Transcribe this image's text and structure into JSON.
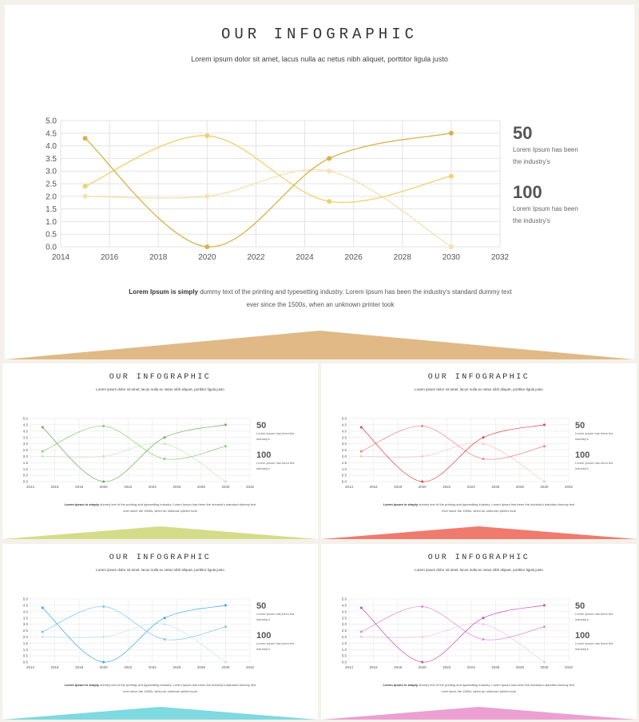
{
  "slide": {
    "title": "OUR INFOGRAPHIC",
    "subtitle": "Lorem ipsum dolor sit amet, lacus nulla ac netus nibh aliquet, porttitor ligula justo",
    "stat1": {
      "value": "50",
      "text": "Lorem  Ipsum has been the  industry's"
    },
    "stat2": {
      "value": "100",
      "text": "Lorem  Ipsum has been the  industry's"
    },
    "desc_bold": "Lorem Ipsum is simply",
    "desc_text": " dummy  text of the printing and typesetting industry. Lorem  Ipsum has been the industry's  standard dummy text ever since the 1500s, when an unknown  printer took"
  },
  "accents": {
    "main": "#e0b986",
    "green": "#d4dc8a",
    "red": "#f07a6e",
    "blue": "#7ed9e0",
    "pink": "#ec9fd2"
  },
  "line_colors": {
    "main": [
      "#d8b24a",
      "#f2d06b",
      "#f7dfb0"
    ],
    "green": [
      "#6cae57",
      "#8ccf76",
      "#c7e6bd"
    ],
    "red": [
      "#d9474b",
      "#ee8a86",
      "#f5c6c3"
    ],
    "blue": [
      "#3ba7e8",
      "#7ec7f0",
      "#c3e3f6"
    ],
    "pink": [
      "#c74bb6",
      "#de8fd2",
      "#efc6e8"
    ]
  },
  "chart_data": {
    "type": "line",
    "smooth": true,
    "x_ticks": [
      2014,
      2016,
      2018,
      2020,
      2022,
      2024,
      2026,
      2028,
      2030,
      2032
    ],
    "y_ticks": [
      0.0,
      0.5,
      1.0,
      1.5,
      2.0,
      2.5,
      3.0,
      3.5,
      4.0,
      4.5,
      5.0
    ],
    "xlim": [
      2014,
      2032
    ],
    "ylim": [
      0,
      5
    ],
    "grid": true,
    "x": [
      2015,
      2020,
      2025,
      2030
    ],
    "series": [
      {
        "values": [
          4.3,
          0.0,
          3.5,
          4.5
        ]
      },
      {
        "values": [
          2.4,
          4.4,
          1.8,
          2.8
        ]
      },
      {
        "values": [
          2.0,
          2.0,
          3.0,
          0.0
        ]
      }
    ]
  }
}
